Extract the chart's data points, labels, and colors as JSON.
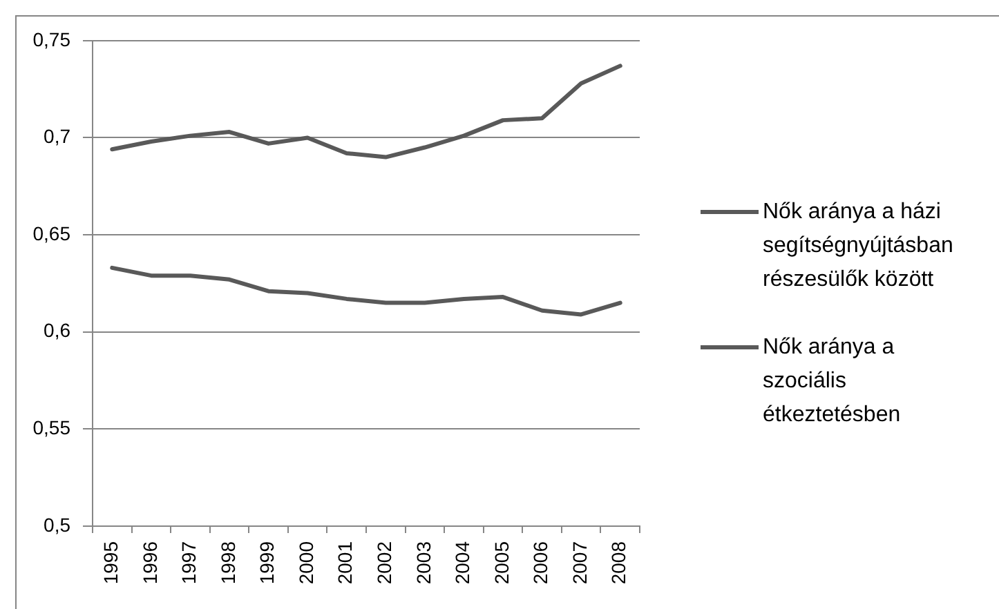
{
  "chart_data": {
    "type": "line",
    "categories": [
      "1995",
      "1996",
      "1997",
      "1998",
      "1999",
      "2000",
      "2001",
      "2002",
      "2003",
      "2004",
      "2005",
      "2006",
      "2007",
      "2008"
    ],
    "series": [
      {
        "name": "Nők aránya a házi segítségnyújtásban részesülők között",
        "color": "#595959",
        "values": [
          0.694,
          0.698,
          0.701,
          0.703,
          0.697,
          0.7,
          0.692,
          0.69,
          0.695,
          0.701,
          0.709,
          0.71,
          0.728,
          0.737
        ]
      },
      {
        "name": "Nők aránya a szociális étkeztetésben",
        "color": "#595959",
        "values": [
          0.633,
          0.629,
          0.629,
          0.627,
          0.621,
          0.62,
          0.617,
          0.615,
          0.615,
          0.617,
          0.618,
          0.611,
          0.609,
          0.615
        ]
      }
    ],
    "ylim": [
      0.5,
      0.75
    ],
    "yticks": [
      {
        "value": 0.5,
        "label": "0,5"
      },
      {
        "value": 0.55,
        "label": "0,55"
      },
      {
        "value": 0.6,
        "label": "0,6"
      },
      {
        "value": 0.65,
        "label": "0,65"
      },
      {
        "value": 0.7,
        "label": "0,7"
      },
      {
        "value": 0.75,
        "label": "0,75"
      }
    ],
    "grid": "y",
    "legend": "right",
    "marker": "none",
    "line_style": "solid"
  }
}
